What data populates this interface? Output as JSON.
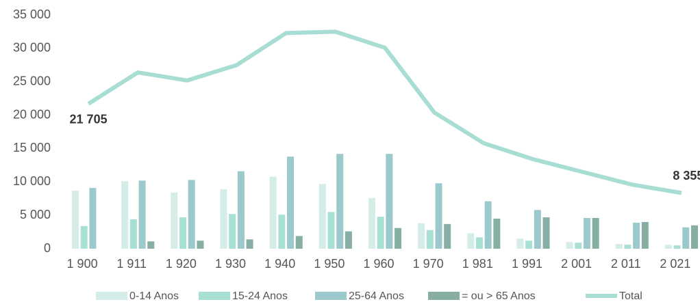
{
  "chart_data": {
    "type": "bar",
    "categories": [
      "1 900",
      "1 911",
      "1 920",
      "1 930",
      "1 940",
      "1 950",
      "1 960",
      "1 970",
      "1 981",
      "1 991",
      "2 001",
      "2 011",
      "2 021"
    ],
    "series": [
      {
        "name": "0-14 Anos",
        "color": "#d5ede8",
        "values": [
          8700,
          10100,
          8400,
          8900,
          10800,
          9700,
          7600,
          3800,
          2300,
          1500,
          1000,
          700,
          600
        ]
      },
      {
        "name": "15-24 Anos",
        "color": "#a8e0d4",
        "values": [
          3400,
          4400,
          4700,
          5200,
          5100,
          5500,
          4800,
          2800,
          1700,
          1200,
          900,
          600,
          500
        ]
      },
      {
        "name": "25-64 Anos",
        "color": "#9cc9cc",
        "values": [
          9100,
          10200,
          10300,
          11600,
          13800,
          14200,
          14200,
          9800,
          7100,
          5800,
          4600,
          3900,
          3200
        ]
      },
      {
        "name": "= ou > 65 Anos",
        "color": "#86aea3",
        "values": [
          0,
          1100,
          1200,
          1400,
          1900,
          2600,
          3100,
          3700,
          4500,
          4700,
          4600,
          4000,
          3500
        ]
      },
      {
        "name": "Total",
        "color": "#a8ddd3",
        "type": "line",
        "values": [
          21705,
          26400,
          25200,
          27500,
          32300,
          32500,
          30100,
          20400,
          15800,
          13400,
          11500,
          9600,
          8355
        ],
        "value_labels": [
          "21 705",
          null,
          null,
          null,
          null,
          null,
          null,
          null,
          null,
          null,
          null,
          null,
          "8 355"
        ]
      }
    ],
    "ylim": [
      0,
      35000
    ],
    "yticks": [
      {
        "value": 0,
        "label": "0"
      },
      {
        "value": 5000,
        "label": "5 000"
      },
      {
        "value": 10000,
        "label": "10 000"
      },
      {
        "value": 15000,
        "label": "15 000"
      },
      {
        "value": 20000,
        "label": "20 000"
      },
      {
        "value": 25000,
        "label": "25 000"
      },
      {
        "value": 30000,
        "label": "30 000"
      },
      {
        "value": 35000,
        "label": "35 000"
      }
    ],
    "grid": false,
    "legend": "bottom"
  }
}
